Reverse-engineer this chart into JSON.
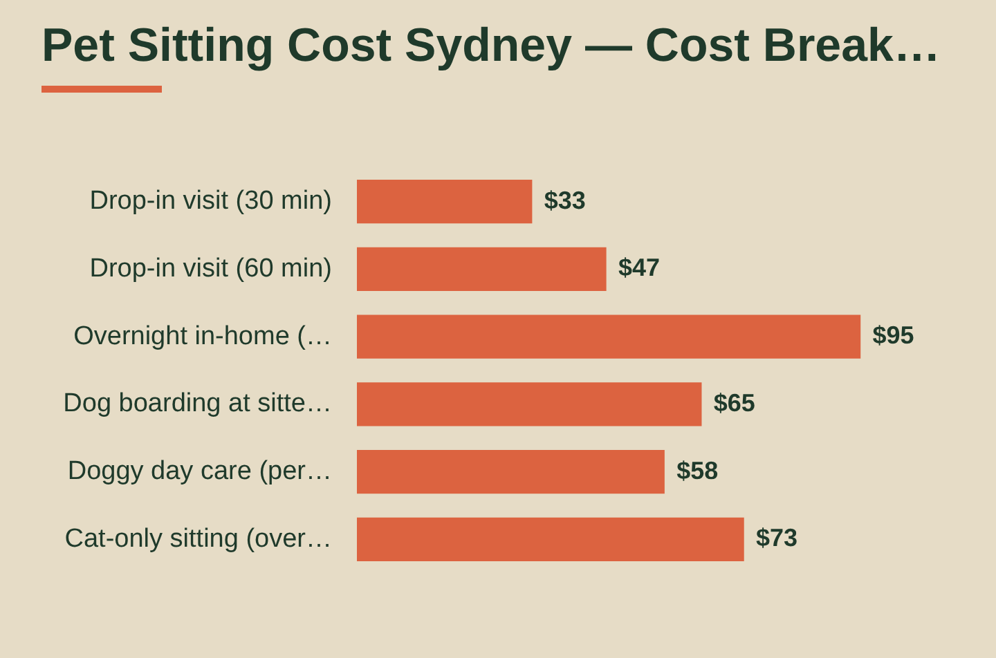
{
  "chart_data": {
    "type": "bar",
    "orientation": "horizontal",
    "title": "Pet Sitting Cost Sydney — Cost Break…",
    "categories": [
      "Drop-in visit (30 min)",
      "Drop-in visit (60 min)",
      "Overnight in-home (…",
      "Dog boarding at sitte…",
      "Doggy day care (per…",
      "Cat-only sitting (over…"
    ],
    "values": [
      33,
      47,
      95,
      65,
      58,
      73
    ],
    "value_labels": [
      "$33",
      "$47",
      "$95",
      "$65",
      "$58",
      "$73"
    ],
    "color": "#dc6340",
    "legend": false
  }
}
